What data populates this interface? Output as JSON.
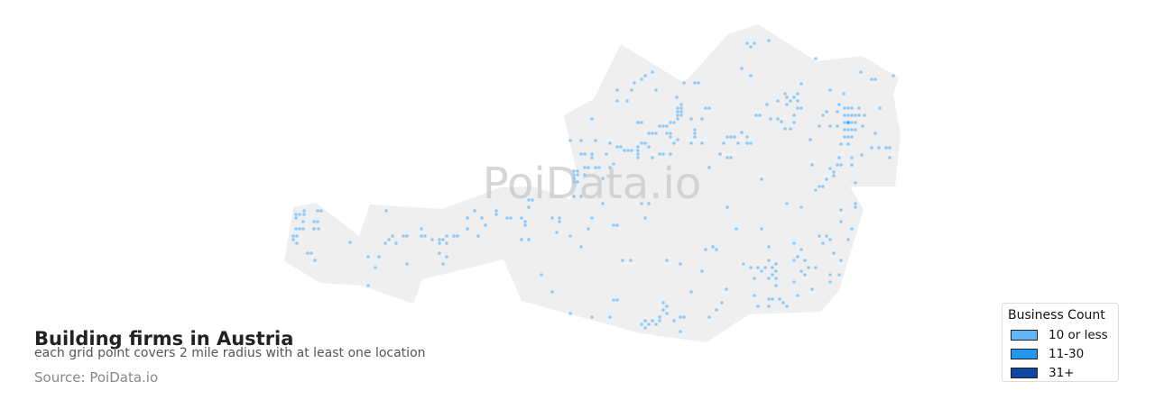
{
  "title": "Building firms in Austria",
  "subtitle": "each grid point covers 2 mile radius with at least one location",
  "source": "Source: PoiData.io",
  "watermark": "PoiData.io",
  "colors": {
    "land": "#efefef",
    "dot_low": "#90caf9",
    "dot_mid": "#42a5f5",
    "dot_high": "#0d47a1"
  },
  "legend": {
    "title": "Business Count",
    "items": [
      {
        "label": "10 or less",
        "color": "#64b5f6"
      },
      {
        "label": "11-30",
        "color": "#2196f3"
      },
      {
        "label": "31+",
        "color": "#0d47a1"
      }
    ]
  }
}
